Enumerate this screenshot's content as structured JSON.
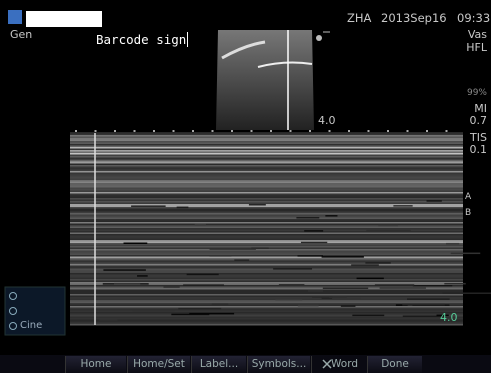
{
  "mode": "Gen",
  "annotation": "Barcode sign",
  "status": {
    "site": "ZHA",
    "date": "2013Sep16",
    "time": "09:33"
  },
  "side_panel": {
    "preset": "Vas",
    "probe": "HFL",
    "battery": "99%",
    "mi_label": "MI",
    "mi_value": "0.7",
    "tis_label": "TIS",
    "tis_value": "0.1",
    "a_label": "A",
    "b_label": "B"
  },
  "depth_bmode": "4.0",
  "depth_mmode": "4.0",
  "cine": "Cine",
  "buttons": [
    "Home",
    "Home/Set",
    "Label...",
    "Symbols...",
    "Word",
    "Done"
  ]
}
